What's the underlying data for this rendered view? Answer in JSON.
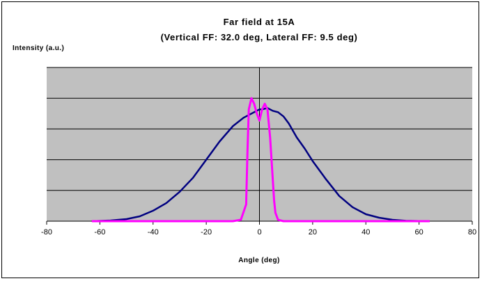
{
  "chart_data": {
    "type": "line",
    "title": "Far field at 15A",
    "subtitle": "(Vertical FF: 32.0 deg, Lateral FF: 9.5 deg)",
    "ylabel": "Intensity (a.u.)",
    "xlabel": "Angle (deg)",
    "xlim": [
      -80,
      80
    ],
    "ylim": [
      0,
      1.1
    ],
    "x_ticks": [
      -80,
      -60,
      -40,
      -20,
      0,
      20,
      40,
      60,
      80
    ],
    "y_gridlines": [
      0.22,
      0.44,
      0.66,
      0.88,
      1.1
    ],
    "grid": true,
    "legend": "none",
    "colors": {
      "plot_background": "#c0c0c0",
      "frame": "#000000"
    },
    "series": [
      {
        "color": "#000080",
        "x": [
          -63,
          -56,
          -50,
          -45,
          -40,
          -35,
          -30,
          -25,
          -20,
          -15,
          -10,
          -6,
          -3,
          -1,
          0,
          1,
          3,
          5,
          7,
          9,
          11,
          14,
          17,
          20,
          25,
          30,
          35,
          40,
          45,
          50,
          55,
          63
        ],
        "y": [
          0,
          0.005,
          0.015,
          0.035,
          0.075,
          0.13,
          0.21,
          0.31,
          0.44,
          0.57,
          0.68,
          0.74,
          0.77,
          0.79,
          0.8,
          0.8,
          0.81,
          0.79,
          0.78,
          0.75,
          0.7,
          0.6,
          0.52,
          0.43,
          0.3,
          0.18,
          0.1,
          0.05,
          0.025,
          0.01,
          0.003,
          0
        ]
      },
      {
        "color": "#ff00ff",
        "x": [
          -63,
          -10,
          -7,
          -5,
          -4.5,
          -4,
          -3,
          -2,
          -1,
          0,
          1,
          2,
          3,
          4,
          5,
          5.5,
          6,
          7,
          9,
          64
        ],
        "y": [
          0,
          0,
          0.01,
          0.12,
          0.5,
          0.8,
          0.88,
          0.84,
          0.77,
          0.72,
          0.8,
          0.84,
          0.8,
          0.6,
          0.3,
          0.15,
          0.06,
          0.01,
          0,
          0
        ]
      }
    ]
  }
}
